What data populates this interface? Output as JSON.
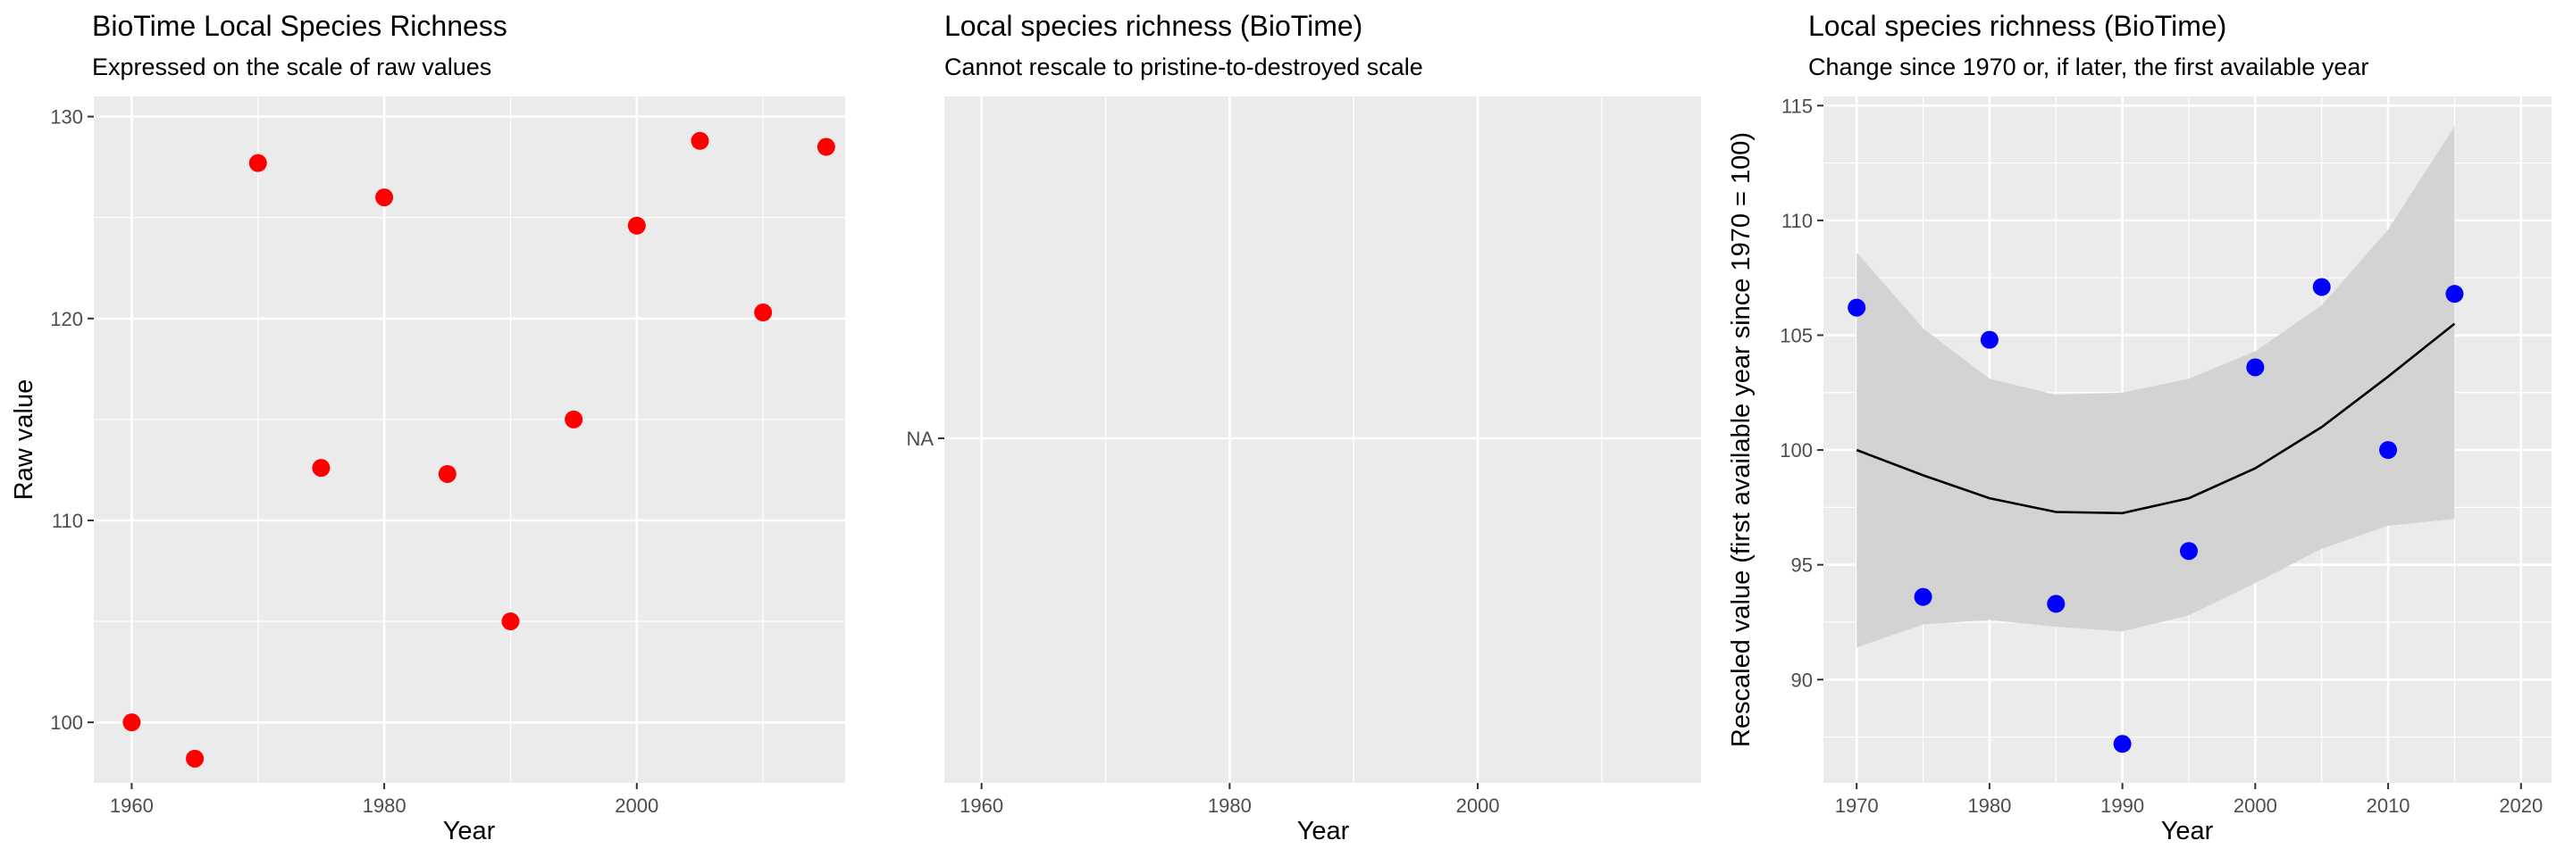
{
  "chart_data": [
    {
      "type": "scatter",
      "title": "BioTime Local Species Richness",
      "subtitle": "Expressed on the scale of raw values",
      "xlabel": "Year",
      "ylabel": "Raw value",
      "xlim": [
        1957,
        2016.5
      ],
      "ylim": [
        97,
        131
      ],
      "x_ticks": [
        1960,
        1980,
        2000
      ],
      "x_tick_labels": [
        "1960",
        "1980",
        "2000"
      ],
      "y_ticks": [
        100,
        110,
        120,
        130
      ],
      "y_tick_labels": [
        "100",
        "110",
        "120",
        "130"
      ],
      "grid": true,
      "point_color": "#ff0000",
      "series": [
        {
          "x": [
            1960,
            1965,
            1970,
            1975,
            1980,
            1985,
            1990,
            1995,
            2000,
            2005,
            2010,
            2015
          ],
          "y": [
            100.0,
            98.2,
            127.7,
            112.6,
            126.0,
            112.3,
            105.0,
            115.0,
            124.6,
            128.8,
            120.3,
            128.5
          ]
        }
      ]
    },
    {
      "type": "scatter",
      "title": "Local species richness (BioTime)",
      "subtitle": "Cannot rescale to pristine-to-destroyed scale",
      "xlabel": "Year",
      "ylabel": "",
      "xlim": [
        1957,
        2018
      ],
      "x_ticks": [
        1960,
        1980,
        2000
      ],
      "x_tick_labels": [
        "1960",
        "1980",
        "2000"
      ],
      "y_tick_labels": [
        "NA"
      ],
      "grid": true,
      "series": []
    },
    {
      "type": "line",
      "title": "Local species richness (BioTime)",
      "subtitle": "Change since 1970 or, if later, the first available year",
      "xlabel": "Year",
      "ylabel": "Rescaled value (first available year since 1970 = 100)",
      "xlim": [
        1967.5,
        2022.3
      ],
      "ylim": [
        85.5,
        115.4
      ],
      "x_ticks": [
        1970,
        1980,
        1990,
        2000,
        2010,
        2020
      ],
      "x_tick_labels": [
        "1970",
        "1980",
        "1990",
        "2000",
        "2010",
        "2020"
      ],
      "y_ticks": [
        90,
        95,
        100,
        105,
        110,
        115
      ],
      "y_tick_labels": [
        "90",
        "95",
        "100",
        "105",
        "110",
        "115"
      ],
      "grid": true,
      "point_color": "#0000ff",
      "line_color": "#000000",
      "band_color": "#d3d3d3",
      "points": {
        "x": [
          1970,
          1975,
          1980,
          1985,
          1990,
          1995,
          2000,
          2005,
          2010,
          2015
        ],
        "y": [
          106.2,
          93.6,
          104.8,
          93.3,
          87.2,
          95.6,
          103.6,
          107.1,
          100.0,
          106.8
        ]
      },
      "fit": {
        "x": [
          1970,
          1975,
          1980,
          1985,
          1990,
          1995,
          2000,
          2005,
          2010,
          2015
        ],
        "y": [
          100.0,
          98.9,
          97.9,
          97.3,
          97.25,
          97.9,
          99.2,
          101.0,
          103.2,
          105.5
        ],
        "lower": [
          91.4,
          92.4,
          92.6,
          92.3,
          92.1,
          92.8,
          94.2,
          95.7,
          96.7,
          97.0
        ],
        "upper": [
          108.6,
          105.3,
          103.1,
          102.4,
          102.5,
          103.1,
          104.3,
          106.3,
          109.6,
          114.1
        ]
      }
    }
  ]
}
